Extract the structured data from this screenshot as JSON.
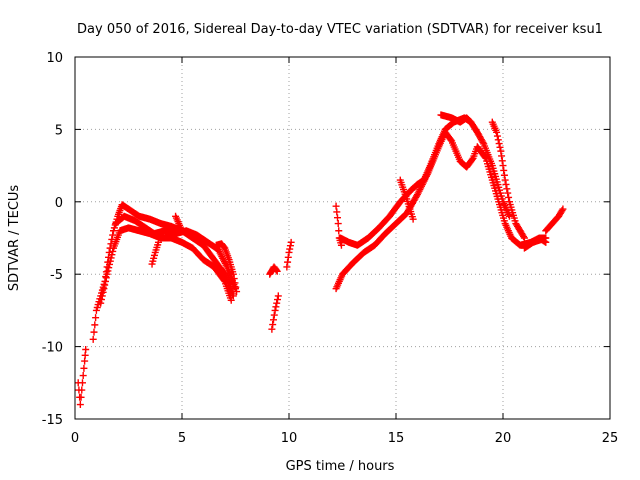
{
  "chart_data": {
    "type": "scatter",
    "title": "Day 050 of 2016, Sidereal Day-to-day VTEC variation (SDTVAR) for receiver ksu1",
    "xlabel": "GPS time / hours",
    "ylabel": "SDTVAR / TECUs",
    "xlim": [
      0,
      25
    ],
    "ylim": [
      -15,
      10
    ],
    "xticks": [
      0,
      5,
      10,
      15,
      20,
      25
    ],
    "yticks": [
      -15,
      -10,
      -5,
      0,
      5,
      10
    ],
    "xtick_labels": [
      "0",
      "5",
      "10",
      "15",
      "20",
      "25"
    ],
    "ytick_labels": [
      "-15",
      "-10",
      "-5",
      "0",
      "5",
      "10"
    ],
    "grid": true,
    "marker": "+",
    "color": "#ff0000",
    "series": [
      {
        "name": "ksu1",
        "tracks": [
          [
            [
              0.15,
              -12.5
            ],
            [
              0.25,
              -14.0
            ],
            [
              0.35,
              -12.5
            ],
            [
              0.45,
              -11.0
            ],
            [
              0.5,
              -10.2
            ]
          ],
          [
            [
              0.85,
              -9.5
            ],
            [
              1.0,
              -7.5
            ],
            [
              1.2,
              -6.5
            ],
            [
              1.4,
              -5.5
            ],
            [
              1.6,
              -3.5
            ],
            [
              1.8,
              -2.0
            ],
            [
              2.0,
              -1.0
            ],
            [
              2.2,
              -0.2
            ],
            [
              2.5,
              -0.5
            ],
            [
              3.0,
              -1.0
            ],
            [
              3.5,
              -1.2
            ],
            [
              4.0,
              -1.5
            ],
            [
              4.5,
              -1.7
            ],
            [
              5.0,
              -2.0
            ],
            [
              5.5,
              -2.5
            ],
            [
              6.0,
              -3.0
            ],
            [
              6.5,
              -4.0
            ],
            [
              7.0,
              -5.0
            ],
            [
              7.4,
              -6.5
            ]
          ],
          [
            [
              1.2,
              -7.0
            ],
            [
              1.5,
              -5.0
            ],
            [
              1.8,
              -3.2
            ],
            [
              2.1,
              -2.0
            ],
            [
              2.5,
              -1.8
            ],
            [
              3.0,
              -2.0
            ],
            [
              3.5,
              -2.2
            ],
            [
              4.0,
              -2.5
            ],
            [
              4.5,
              -2.5
            ],
            [
              5.0,
              -2.8
            ],
            [
              5.5,
              -3.2
            ],
            [
              6.0,
              -4.0
            ],
            [
              6.5,
              -4.5
            ],
            [
              7.0,
              -5.5
            ],
            [
              7.3,
              -6.8
            ]
          ],
          [
            [
              1.9,
              -1.5
            ],
            [
              2.3,
              -1.0
            ],
            [
              2.8,
              -1.3
            ],
            [
              3.3,
              -1.8
            ],
            [
              3.7,
              -2.2
            ],
            [
              4.2,
              -2.0
            ],
            [
              4.7,
              -2.2
            ],
            [
              5.2,
              -2.0
            ],
            [
              5.7,
              -2.3
            ],
            [
              6.2,
              -2.8
            ],
            [
              6.7,
              -3.3
            ],
            [
              7.1,
              -4.5
            ],
            [
              7.5,
              -6.0
            ]
          ],
          [
            [
              3.6,
              -4.3
            ],
            [
              3.75,
              -3.5
            ],
            [
              3.9,
              -2.8
            ]
          ],
          [
            [
              4.7,
              -1.0
            ],
            [
              4.85,
              -1.5
            ],
            [
              5.0,
              -2.0
            ]
          ],
          [
            [
              6.6,
              -3.0
            ],
            [
              6.85,
              -2.9
            ],
            [
              7.0,
              -3.2
            ],
            [
              7.2,
              -4.0
            ],
            [
              7.4,
              -5.0
            ],
            [
              7.55,
              -6.2
            ]
          ],
          [
            [
              9.1,
              -5.0
            ],
            [
              9.3,
              -4.5
            ],
            [
              9.45,
              -4.8
            ]
          ],
          [
            [
              9.2,
              -8.8
            ],
            [
              9.35,
              -7.5
            ],
            [
              9.5,
              -6.5
            ]
          ],
          [
            [
              9.9,
              -4.5
            ],
            [
              10.0,
              -3.5
            ],
            [
              10.1,
              -2.8
            ]
          ],
          [
            [
              12.2,
              -0.3
            ],
            [
              12.3,
              -1.5
            ],
            [
              12.35,
              -2.5
            ],
            [
              12.45,
              -3.0
            ]
          ],
          [
            [
              12.2,
              -6.0
            ],
            [
              12.5,
              -5.0
            ],
            [
              13.0,
              -4.2
            ],
            [
              13.5,
              -3.5
            ],
            [
              14.0,
              -3.0
            ],
            [
              14.5,
              -2.2
            ],
            [
              15.0,
              -1.5
            ],
            [
              15.5,
              -0.8
            ],
            [
              16.0,
              0.5
            ],
            [
              16.5,
              2.0
            ],
            [
              17.0,
              3.8
            ],
            [
              17.3,
              4.8
            ],
            [
              17.6,
              4.2
            ],
            [
              18.0,
              2.8
            ],
            [
              18.3,
              2.4
            ],
            [
              18.6,
              3.0
            ],
            [
              18.8,
              3.8
            ],
            [
              19.2,
              3.0
            ],
            [
              19.5,
              1.5
            ],
            [
              19.8,
              0.0
            ],
            [
              20.1,
              -1.5
            ],
            [
              20.4,
              -2.5
            ],
            [
              20.8,
              -3.0
            ],
            [
              21.3,
              -2.8
            ],
            [
              21.7,
              -2.5
            ],
            [
              22.0,
              -2.5
            ]
          ],
          [
            [
              12.4,
              -2.5
            ],
            [
              12.8,
              -2.8
            ],
            [
              13.2,
              -3.0
            ],
            [
              13.7,
              -2.5
            ],
            [
              14.2,
              -1.8
            ],
            [
              14.7,
              -1.0
            ],
            [
              15.2,
              0.0
            ],
            [
              15.7,
              0.8
            ],
            [
              16.0,
              1.2
            ],
            [
              16.3,
              1.5
            ],
            [
              16.6,
              2.5
            ],
            [
              17.0,
              4.0
            ],
            [
              17.3,
              5.0
            ],
            [
              17.7,
              5.5
            ],
            [
              18.2,
              5.8
            ],
            [
              18.5,
              5.5
            ],
            [
              18.8,
              4.8
            ],
            [
              19.1,
              4.0
            ],
            [
              19.5,
              2.5
            ],
            [
              19.8,
              1.0
            ],
            [
              20.0,
              0.0
            ],
            [
              20.3,
              -1.0
            ]
          ],
          [
            [
              15.2,
              1.5
            ],
            [
              15.5,
              0.2
            ],
            [
              15.8,
              -1.2
            ]
          ],
          [
            [
              17.1,
              6.0
            ],
            [
              17.6,
              5.8
            ],
            [
              18.0,
              5.5
            ],
            [
              18.3,
              5.8
            ],
            [
              18.5,
              5.5
            ]
          ],
          [
            [
              19.5,
              5.5
            ],
            [
              19.7,
              4.8
            ],
            [
              19.9,
              3.5
            ],
            [
              20.1,
              1.5
            ],
            [
              20.3,
              0.0
            ]
          ],
          [
            [
              20.3,
              0.0
            ],
            [
              20.6,
              -1.5
            ],
            [
              21.0,
              -2.5
            ]
          ],
          [
            [
              22.0,
              -2.0
            ],
            [
              22.3,
              -1.5
            ],
            [
              22.6,
              -1.0
            ],
            [
              22.8,
              -0.5
            ]
          ],
          [
            [
              21.0,
              -3.2
            ],
            [
              21.4,
              -2.8
            ],
            [
              21.8,
              -2.6
            ],
            [
              22.0,
              -2.8
            ]
          ]
        ]
      }
    ]
  }
}
